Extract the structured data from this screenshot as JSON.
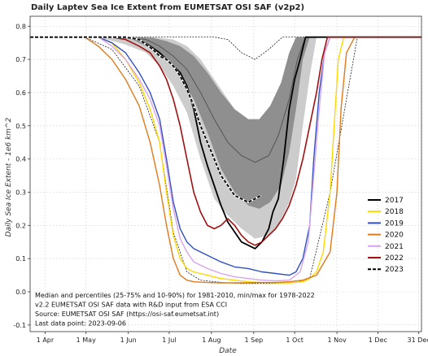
{
  "chart_data": {
    "type": "line",
    "title": "Daily Laptev Sea Ice Extent from EUMETSAT OSI SAF (v2p2)",
    "xlabel": "Date",
    "ylabel": "Daily Sea Ice Extent - 1e6 km^2",
    "ylim": [
      -0.12,
      0.83
    ],
    "xlim": [
      80,
      367
    ],
    "grid": true,
    "legend_position": "right",
    "yticks": [
      -0.1,
      0.0,
      0.1,
      0.2,
      0.3,
      0.4,
      0.5,
      0.6,
      0.7,
      0.8
    ],
    "xticks": [
      {
        "doy": 91,
        "label": "1 Apr"
      },
      {
        "doy": 121,
        "label": "1 May"
      },
      {
        "doy": 152,
        "label": "1 Jun"
      },
      {
        "doy": 182,
        "label": "1 Jul"
      },
      {
        "doy": 213,
        "label": "1 Aug"
      },
      {
        "doy": 244,
        "label": "1 Sep"
      },
      {
        "doy": 274,
        "label": "1 Oct"
      },
      {
        "doy": 305,
        "label": "1 Nov"
      },
      {
        "doy": 335,
        "label": "1 Dec"
      },
      {
        "doy": 365,
        "label": "31 Dec"
      }
    ],
    "band_10_90": {
      "x": [
        80,
        130,
        150,
        165,
        175,
        185,
        195,
        205,
        215,
        225,
        235,
        245,
        255,
        262,
        270,
        275,
        280,
        285,
        290,
        367
      ],
      "lower": [
        0.767,
        0.767,
        0.745,
        0.72,
        0.68,
        0.62,
        0.54,
        0.4,
        0.28,
        0.23,
        0.19,
        0.16,
        0.17,
        0.2,
        0.27,
        0.34,
        0.5,
        0.65,
        0.767,
        0.767
      ],
      "upper": [
        0.767,
        0.767,
        0.767,
        0.767,
        0.765,
        0.76,
        0.74,
        0.7,
        0.64,
        0.58,
        0.52,
        0.49,
        0.53,
        0.6,
        0.7,
        0.767,
        0.767,
        0.767,
        0.767,
        0.767
      ]
    },
    "band_25_75": {
      "x": [
        80,
        140,
        155,
        170,
        180,
        190,
        200,
        210,
        220,
        230,
        240,
        248,
        256,
        264,
        270,
        275,
        280,
        285,
        367
      ],
      "lower": [
        0.767,
        0.767,
        0.76,
        0.73,
        0.7,
        0.65,
        0.58,
        0.48,
        0.37,
        0.3,
        0.26,
        0.25,
        0.27,
        0.32,
        0.42,
        0.55,
        0.7,
        0.767,
        0.767
      ],
      "upper": [
        0.767,
        0.767,
        0.767,
        0.765,
        0.755,
        0.74,
        0.71,
        0.66,
        0.6,
        0.55,
        0.52,
        0.52,
        0.56,
        0.63,
        0.72,
        0.767,
        0.767,
        0.767,
        0.767
      ]
    },
    "median": {
      "x": [
        80,
        150,
        165,
        175,
        185,
        195,
        205,
        215,
        225,
        235,
        245,
        255,
        262,
        270,
        276,
        282,
        367
      ],
      "y": [
        0.767,
        0.767,
        0.76,
        0.74,
        0.71,
        0.67,
        0.6,
        0.52,
        0.45,
        0.41,
        0.39,
        0.41,
        0.47,
        0.58,
        0.7,
        0.767,
        0.767
      ]
    },
    "minmax": {
      "x": [
        80,
        120,
        140,
        160,
        175,
        185,
        195,
        205,
        215,
        225,
        235,
        245,
        255,
        265,
        275,
        285,
        300,
        320,
        340,
        367
      ],
      "min": [
        0.767,
        0.767,
        0.73,
        0.62,
        0.45,
        0.18,
        0.06,
        0.035,
        0.03,
        0.027,
        0.025,
        0.025,
        0.025,
        0.026,
        0.028,
        0.04,
        0.3,
        0.767,
        0.767,
        0.767
      ],
      "max": [
        0.767,
        0.767,
        0.767,
        0.767,
        0.767,
        0.767,
        0.767,
        0.767,
        0.767,
        0.76,
        0.72,
        0.7,
        0.73,
        0.767,
        0.767,
        0.767,
        0.767,
        0.767,
        0.767,
        0.767
      ]
    },
    "series": [
      {
        "name": "2017",
        "color": "#000000",
        "width": 1.8,
        "dash": "",
        "x": [
          80,
          150,
          160,
          168,
          175,
          180,
          185,
          190,
          195,
          200,
          205,
          210,
          215,
          220,
          225,
          230,
          235,
          240,
          245,
          250,
          255,
          258,
          262,
          266,
          270,
          274,
          278,
          282,
          286,
          367
        ],
        "y": [
          0.767,
          0.767,
          0.76,
          0.74,
          0.72,
          0.7,
          0.68,
          0.66,
          0.62,
          0.55,
          0.45,
          0.38,
          0.32,
          0.26,
          0.21,
          0.18,
          0.15,
          0.14,
          0.13,
          0.15,
          0.19,
          0.24,
          0.28,
          0.4,
          0.55,
          0.64,
          0.7,
          0.767,
          0.767,
          0.767
        ]
      },
      {
        "name": "2018",
        "color": "#ffd700",
        "width": 1.4,
        "dash": "",
        "x": [
          80,
          130,
          140,
          150,
          160,
          168,
          175,
          180,
          185,
          190,
          195,
          200,
          205,
          210,
          220,
          230,
          240,
          250,
          260,
          270,
          280,
          285,
          290,
          295,
          300,
          303,
          306,
          310,
          315,
          367
        ],
        "y": [
          0.767,
          0.767,
          0.75,
          0.7,
          0.63,
          0.55,
          0.45,
          0.3,
          0.17,
          0.1,
          0.07,
          0.06,
          0.055,
          0.05,
          0.04,
          0.035,
          0.03,
          0.028,
          0.027,
          0.027,
          0.03,
          0.04,
          0.06,
          0.12,
          0.3,
          0.5,
          0.7,
          0.767,
          0.767,
          0.767
        ]
      },
      {
        "name": "2019",
        "color": "#3050c0",
        "width": 1.4,
        "dash": "",
        "x": [
          80,
          130,
          140,
          150,
          160,
          168,
          175,
          180,
          185,
          190,
          195,
          200,
          210,
          220,
          230,
          240,
          250,
          260,
          270,
          275,
          280,
          285,
          288,
          292,
          296,
          300,
          367
        ],
        "y": [
          0.767,
          0.767,
          0.75,
          0.72,
          0.66,
          0.6,
          0.52,
          0.4,
          0.27,
          0.19,
          0.15,
          0.13,
          0.11,
          0.09,
          0.075,
          0.07,
          0.06,
          0.055,
          0.05,
          0.06,
          0.1,
          0.2,
          0.4,
          0.6,
          0.72,
          0.767,
          0.767
        ]
      },
      {
        "name": "2020",
        "color": "#e07a1a",
        "width": 1.4,
        "dash": "",
        "x": [
          80,
          120,
          130,
          140,
          150,
          160,
          168,
          175,
          180,
          185,
          190,
          195,
          200,
          210,
          220,
          230,
          240,
          250,
          260,
          270,
          280,
          290,
          300,
          305,
          308,
          312,
          318,
          367
        ],
        "y": [
          0.767,
          0.767,
          0.74,
          0.7,
          0.64,
          0.56,
          0.45,
          0.32,
          0.2,
          0.1,
          0.05,
          0.035,
          0.03,
          0.028,
          0.027,
          0.027,
          0.027,
          0.028,
          0.028,
          0.03,
          0.035,
          0.05,
          0.12,
          0.3,
          0.55,
          0.72,
          0.767,
          0.767
        ]
      },
      {
        "name": "2021",
        "color": "#d8a4ec",
        "width": 1.4,
        "dash": "",
        "x": [
          80,
          130,
          140,
          150,
          160,
          168,
          175,
          180,
          185,
          190,
          195,
          200,
          210,
          220,
          230,
          240,
          250,
          260,
          270,
          278,
          284,
          288,
          292,
          296,
          300,
          367
        ],
        "y": [
          0.767,
          0.767,
          0.74,
          0.7,
          0.64,
          0.58,
          0.5,
          0.38,
          0.25,
          0.16,
          0.12,
          0.09,
          0.07,
          0.055,
          0.045,
          0.04,
          0.035,
          0.033,
          0.035,
          0.06,
          0.15,
          0.35,
          0.55,
          0.72,
          0.767,
          0.767
        ]
      },
      {
        "name": "2022",
        "color": "#a01010",
        "width": 1.6,
        "dash": "",
        "x": [
          80,
          140,
          150,
          160,
          168,
          175,
          180,
          185,
          190,
          195,
          200,
          205,
          210,
          215,
          220,
          225,
          230,
          235,
          240,
          245,
          250,
          255,
          260,
          265,
          270,
          275,
          280,
          285,
          290,
          294,
          298,
          367
        ],
        "y": [
          0.767,
          0.767,
          0.76,
          0.74,
          0.72,
          0.68,
          0.64,
          0.58,
          0.5,
          0.4,
          0.3,
          0.24,
          0.2,
          0.19,
          0.2,
          0.22,
          0.2,
          0.17,
          0.15,
          0.14,
          0.15,
          0.17,
          0.19,
          0.22,
          0.26,
          0.32,
          0.4,
          0.5,
          0.6,
          0.7,
          0.767,
          0.767
        ]
      },
      {
        "name": "2023",
        "color": "#000000",
        "width": 1.8,
        "dash": "4 2",
        "x": [
          80,
          150,
          160,
          170,
          175,
          180,
          185,
          190,
          195,
          200,
          205,
          210,
          215,
          220,
          225,
          230,
          235,
          240,
          245,
          249
        ],
        "y": [
          0.767,
          0.767,
          0.76,
          0.73,
          0.71,
          0.7,
          0.68,
          0.65,
          0.61,
          0.56,
          0.5,
          0.45,
          0.4,
          0.35,
          0.32,
          0.29,
          0.28,
          0.27,
          0.28,
          0.29
        ]
      }
    ],
    "annotations": [
      "Median and percentiles (25-75% and 10-90%) for 1981-2010, min/max for 1978-2022",
      "v2.2 EUMETSAT OSI SAF data with R&D input from ESA CCI",
      "Source: EUMETSAT OSI SAF (https://osi-saf.eumetsat.int)",
      "Last data point: 2023-09-06"
    ]
  }
}
